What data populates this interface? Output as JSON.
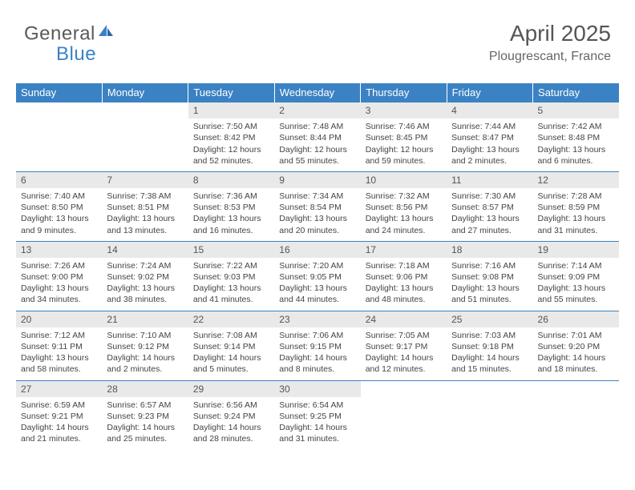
{
  "logo": {
    "part1": "General",
    "part2": "Blue"
  },
  "header": {
    "title": "April 2025",
    "location": "Plougrescant, France"
  },
  "colors": {
    "header_bg": "#3b82c4",
    "header_text": "#ffffff",
    "daynum_bg": "#e9e9e9",
    "body_text": "#444444",
    "rule": "#3b82c4"
  },
  "weekdays": [
    "Sunday",
    "Monday",
    "Tuesday",
    "Wednesday",
    "Thursday",
    "Friday",
    "Saturday"
  ],
  "weeks": [
    [
      null,
      null,
      {
        "n": "1",
        "sr": "Sunrise: 7:50 AM",
        "ss": "Sunset: 8:42 PM",
        "dl": "Daylight: 12 hours and 52 minutes."
      },
      {
        "n": "2",
        "sr": "Sunrise: 7:48 AM",
        "ss": "Sunset: 8:44 PM",
        "dl": "Daylight: 12 hours and 55 minutes."
      },
      {
        "n": "3",
        "sr": "Sunrise: 7:46 AM",
        "ss": "Sunset: 8:45 PM",
        "dl": "Daylight: 12 hours and 59 minutes."
      },
      {
        "n": "4",
        "sr": "Sunrise: 7:44 AM",
        "ss": "Sunset: 8:47 PM",
        "dl": "Daylight: 13 hours and 2 minutes."
      },
      {
        "n": "5",
        "sr": "Sunrise: 7:42 AM",
        "ss": "Sunset: 8:48 PM",
        "dl": "Daylight: 13 hours and 6 minutes."
      }
    ],
    [
      {
        "n": "6",
        "sr": "Sunrise: 7:40 AM",
        "ss": "Sunset: 8:50 PM",
        "dl": "Daylight: 13 hours and 9 minutes."
      },
      {
        "n": "7",
        "sr": "Sunrise: 7:38 AM",
        "ss": "Sunset: 8:51 PM",
        "dl": "Daylight: 13 hours and 13 minutes."
      },
      {
        "n": "8",
        "sr": "Sunrise: 7:36 AM",
        "ss": "Sunset: 8:53 PM",
        "dl": "Daylight: 13 hours and 16 minutes."
      },
      {
        "n": "9",
        "sr": "Sunrise: 7:34 AM",
        "ss": "Sunset: 8:54 PM",
        "dl": "Daylight: 13 hours and 20 minutes."
      },
      {
        "n": "10",
        "sr": "Sunrise: 7:32 AM",
        "ss": "Sunset: 8:56 PM",
        "dl": "Daylight: 13 hours and 24 minutes."
      },
      {
        "n": "11",
        "sr": "Sunrise: 7:30 AM",
        "ss": "Sunset: 8:57 PM",
        "dl": "Daylight: 13 hours and 27 minutes."
      },
      {
        "n": "12",
        "sr": "Sunrise: 7:28 AM",
        "ss": "Sunset: 8:59 PM",
        "dl": "Daylight: 13 hours and 31 minutes."
      }
    ],
    [
      {
        "n": "13",
        "sr": "Sunrise: 7:26 AM",
        "ss": "Sunset: 9:00 PM",
        "dl": "Daylight: 13 hours and 34 minutes."
      },
      {
        "n": "14",
        "sr": "Sunrise: 7:24 AM",
        "ss": "Sunset: 9:02 PM",
        "dl": "Daylight: 13 hours and 38 minutes."
      },
      {
        "n": "15",
        "sr": "Sunrise: 7:22 AM",
        "ss": "Sunset: 9:03 PM",
        "dl": "Daylight: 13 hours and 41 minutes."
      },
      {
        "n": "16",
        "sr": "Sunrise: 7:20 AM",
        "ss": "Sunset: 9:05 PM",
        "dl": "Daylight: 13 hours and 44 minutes."
      },
      {
        "n": "17",
        "sr": "Sunrise: 7:18 AM",
        "ss": "Sunset: 9:06 PM",
        "dl": "Daylight: 13 hours and 48 minutes."
      },
      {
        "n": "18",
        "sr": "Sunrise: 7:16 AM",
        "ss": "Sunset: 9:08 PM",
        "dl": "Daylight: 13 hours and 51 minutes."
      },
      {
        "n": "19",
        "sr": "Sunrise: 7:14 AM",
        "ss": "Sunset: 9:09 PM",
        "dl": "Daylight: 13 hours and 55 minutes."
      }
    ],
    [
      {
        "n": "20",
        "sr": "Sunrise: 7:12 AM",
        "ss": "Sunset: 9:11 PM",
        "dl": "Daylight: 13 hours and 58 minutes."
      },
      {
        "n": "21",
        "sr": "Sunrise: 7:10 AM",
        "ss": "Sunset: 9:12 PM",
        "dl": "Daylight: 14 hours and 2 minutes."
      },
      {
        "n": "22",
        "sr": "Sunrise: 7:08 AM",
        "ss": "Sunset: 9:14 PM",
        "dl": "Daylight: 14 hours and 5 minutes."
      },
      {
        "n": "23",
        "sr": "Sunrise: 7:06 AM",
        "ss": "Sunset: 9:15 PM",
        "dl": "Daylight: 14 hours and 8 minutes."
      },
      {
        "n": "24",
        "sr": "Sunrise: 7:05 AM",
        "ss": "Sunset: 9:17 PM",
        "dl": "Daylight: 14 hours and 12 minutes."
      },
      {
        "n": "25",
        "sr": "Sunrise: 7:03 AM",
        "ss": "Sunset: 9:18 PM",
        "dl": "Daylight: 14 hours and 15 minutes."
      },
      {
        "n": "26",
        "sr": "Sunrise: 7:01 AM",
        "ss": "Sunset: 9:20 PM",
        "dl": "Daylight: 14 hours and 18 minutes."
      }
    ],
    [
      {
        "n": "27",
        "sr": "Sunrise: 6:59 AM",
        "ss": "Sunset: 9:21 PM",
        "dl": "Daylight: 14 hours and 21 minutes."
      },
      {
        "n": "28",
        "sr": "Sunrise: 6:57 AM",
        "ss": "Sunset: 9:23 PM",
        "dl": "Daylight: 14 hours and 25 minutes."
      },
      {
        "n": "29",
        "sr": "Sunrise: 6:56 AM",
        "ss": "Sunset: 9:24 PM",
        "dl": "Daylight: 14 hours and 28 minutes."
      },
      {
        "n": "30",
        "sr": "Sunrise: 6:54 AM",
        "ss": "Sunset: 9:25 PM",
        "dl": "Daylight: 14 hours and 31 minutes."
      },
      null,
      null,
      null
    ]
  ]
}
